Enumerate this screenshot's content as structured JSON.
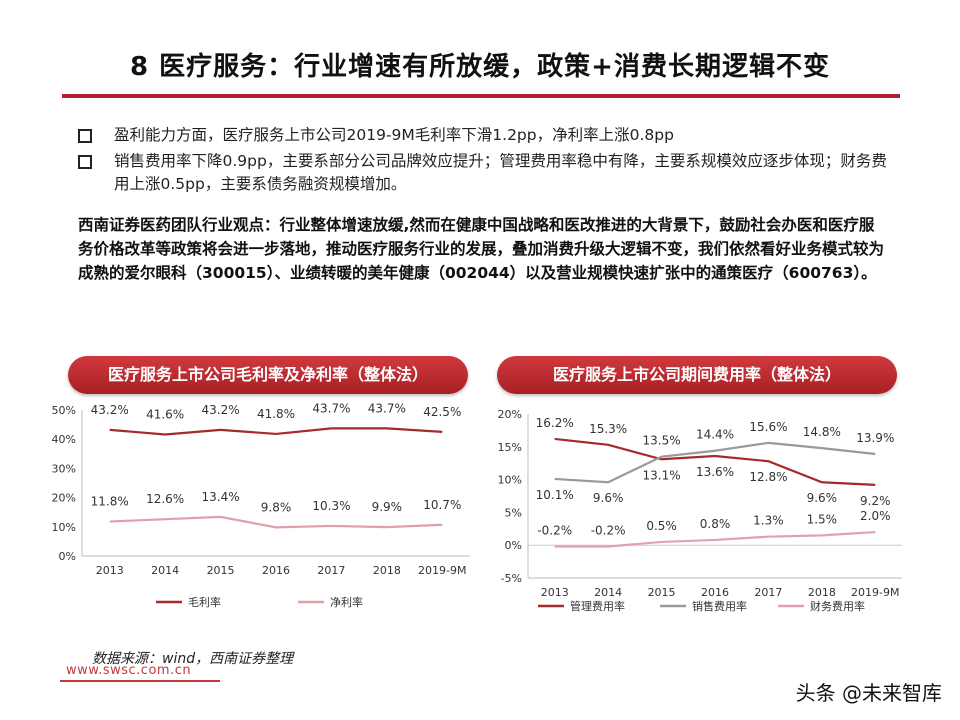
{
  "title": "8 医疗服务：行业增速有所放缓，政策+消费长期逻辑不变",
  "bullets": [
    "盈利能力方面，医疗服务上市公司2019-9M毛利率下滑1.2pp，净利率上涨0.8pp",
    "销售费用率下降0.9pp，主要系部分公司品牌效应提升；管理费用率稳中有降，主要系规模效应逐步体现；财务费用上涨0.5pp，主要系债务融资规模增加。"
  ],
  "viewpoint": "西南证券医药团队行业观点：行业整体增速放缓,然而在健康中国战略和医改推进的大背景下，鼓励社会办医和医疗服务价格改革等政策将会进一步落地，推动医疗服务行业的发展，叠加消费升级大逻辑不变，我们依然看好业务模式较为成熟的爱尔眼科（300015）、业绩转暖的美年健康（002044）以及营业规模快速扩张中的通策医疗（600763）。",
  "source": "数据来源：wind，西南证券整理",
  "site": "www.swsc.com.cn",
  "watermark": "头条 @未来智库",
  "chart_data": [
    {
      "type": "line",
      "title": "医疗服务上市公司毛利率及净利率（整体法）",
      "categories": [
        "2013",
        "2014",
        "2015",
        "2016",
        "2017",
        "2018",
        "2019-9M"
      ],
      "ylim": [
        0,
        50
      ],
      "yticks": [
        "0%",
        "10%",
        "20%",
        "30%",
        "40%",
        "50%"
      ],
      "ytick_values": [
        0,
        10,
        20,
        30,
        40,
        50
      ],
      "grid": false,
      "legend_position": "bottom",
      "series": [
        {
          "name": "毛利率",
          "color": "#a52a2a",
          "values": [
            43.2,
            41.6,
            43.2,
            41.8,
            43.7,
            43.7,
            42.5
          ],
          "labels": [
            "43.2%",
            "41.6%",
            "43.2%",
            "41.8%",
            "43.7%",
            "43.7%",
            "42.5%"
          ]
        },
        {
          "name": "净利率",
          "color": "#e0a0a8",
          "values": [
            11.8,
            12.6,
            13.4,
            9.8,
            10.3,
            9.9,
            10.7
          ],
          "labels": [
            "11.8%",
            "12.6%",
            "13.4%",
            "9.8%",
            "10.3%",
            "9.9%",
            "10.7%"
          ]
        }
      ]
    },
    {
      "type": "line",
      "title": "医疗服务上市公司期间费用率（整体法）",
      "categories": [
        "2013",
        "2014",
        "2015",
        "2016",
        "2017",
        "2018",
        "2019-9M"
      ],
      "ylim": [
        -5,
        20
      ],
      "yticks": [
        "-5%",
        "0%",
        "5%",
        "10%",
        "15%",
        "20%"
      ],
      "ytick_values": [
        -5,
        0,
        5,
        10,
        15,
        20
      ],
      "grid": false,
      "legend_position": "bottom",
      "series": [
        {
          "name": "管理费用率",
          "color": "#a52a2a",
          "values": [
            16.2,
            15.3,
            13.1,
            13.6,
            12.8,
            9.6,
            9.2
          ],
          "labels": [
            "16.2%",
            "15.3%",
            "13.1%",
            "13.6%",
            "12.8%",
            "9.6%",
            "9.2%"
          ]
        },
        {
          "name": "销售费用率",
          "color": "#9a9a9a",
          "values": [
            10.1,
            9.6,
            13.5,
            14.4,
            15.6,
            14.8,
            13.9
          ],
          "labels": [
            "10.1%",
            "9.6%",
            "13.5%",
            "14.4%",
            "15.6%",
            "14.8%",
            "13.9%"
          ]
        },
        {
          "name": "财务费用率",
          "color": "#e0a0b8",
          "values": [
            -0.2,
            -0.2,
            0.5,
            0.8,
            1.3,
            1.5,
            2.0
          ],
          "labels": [
            "-0.2%",
            "-0.2%",
            "0.5%",
            "0.8%",
            "1.3%",
            "1.5%",
            "2.0%"
          ]
        }
      ]
    }
  ]
}
